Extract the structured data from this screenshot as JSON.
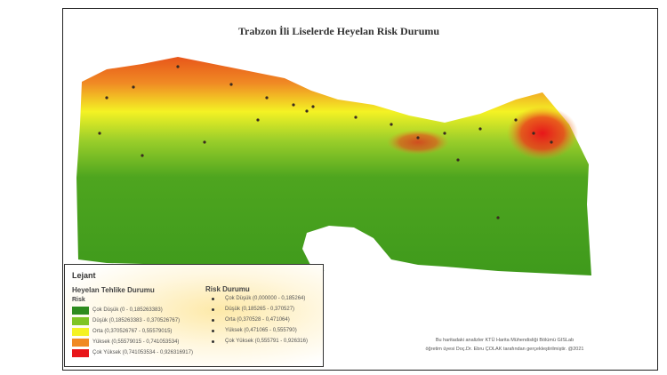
{
  "title": "Trabzon İli Liselerde Heyelan Risk Durumu",
  "legend": {
    "title": "Lejant",
    "hazard_heading": "Heyelan Tehlike Durumu",
    "hazard_sub": "Risk",
    "hazard_classes": [
      {
        "label": "Çok Düşük (0 - 0,185263383)",
        "color": "#2e8b1e"
      },
      {
        "label": "Düşük (0,185263383 - 0,370526767)",
        "color": "#7fc424"
      },
      {
        "label": "Orta (0,370526767 - 0,55579015)",
        "color": "#f4f224"
      },
      {
        "label": "Yüksek (0,55579015 - 0,741053534)",
        "color": "#f08a24"
      },
      {
        "label": "Çok Yüksek (0,741053534 - 0,926316917)",
        "color": "#e8161a"
      }
    ],
    "risk_heading": "Risk Durumu",
    "risk_classes": [
      {
        "label": "Çok Düşük (0,000000 - 0,185264)"
      },
      {
        "label": "Düşük (0,185265 - 0,370527)"
      },
      {
        "label": "Orta (0,370528 - 0,471064)"
      },
      {
        "label": "Yüksek (0,471065 - 0,555790)"
      },
      {
        "label": "Çok Yüksek (0,555791 - 0,926316)"
      }
    ]
  },
  "credit": {
    "line1": "Bu haritadaki analizler KTÜ Harita Mühendisliği Bölümü GISLab",
    "line2": "öğretim üyesi Doç.Dr. Ebru ÇOLAK tarafından gerçekleştirilmiştir. @2021"
  }
}
